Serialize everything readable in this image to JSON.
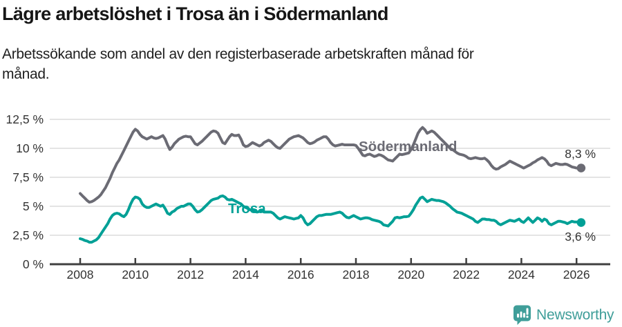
{
  "header": {
    "title": "Lägre arbetslöshet i Trosa än i Södermanland",
    "subtitle_line1": "Arbetssökande som andel av den registerbaserade arbetskraften månad för",
    "subtitle_line2": "månad."
  },
  "footer": {
    "brand": "Newsworthy"
  },
  "colors": {
    "sodermanland_line": "#6b6b74",
    "trosa_line": "#00a096",
    "brand_teal": "#3f9e99",
    "gridline": "#dcdcdc",
    "axis": "#3f3f3f",
    "tick_label": "#333333"
  },
  "chart_data": {
    "type": "line",
    "unit": "%",
    "frequency": "monthly",
    "x_start": "2008-01",
    "x_end": "2026-03",
    "xlim": [
      2008,
      2027.2
    ],
    "ylim": [
      0,
      12.5
    ],
    "grid": "horizontal-only",
    "y_ticks": [
      0,
      2.5,
      5,
      7.5,
      10,
      12.5
    ],
    "y_tick_labels": [
      "0 %",
      "2,5 %",
      "5 %",
      "7,5 %",
      "10 %",
      "12,5 %"
    ],
    "x_ticks": [
      2008,
      2010,
      2012,
      2014,
      2016,
      2018,
      2020,
      2022,
      2024,
      2026
    ],
    "x_tick_labels": [
      "2008",
      "2010",
      "2012",
      "2014",
      "2016",
      "2018",
      "2020",
      "2022",
      "2024",
      "2026"
    ],
    "legend_position": "inline-labels-on-lines",
    "series": [
      {
        "name": "Södermanland",
        "color": "#6b6b74",
        "end_label": "8,3 %",
        "last_value": 8.3,
        "values": [
          6.1,
          5.9,
          5.7,
          5.5,
          5.35,
          5.4,
          5.5,
          5.65,
          5.8,
          6.0,
          6.3,
          6.6,
          7.0,
          7.4,
          7.9,
          8.3,
          8.7,
          9.0,
          9.4,
          9.8,
          10.2,
          10.6,
          11.0,
          11.4,
          11.65,
          11.5,
          11.2,
          11.0,
          10.9,
          10.8,
          10.9,
          11.0,
          10.9,
          10.85,
          10.9,
          11.0,
          11.1,
          10.8,
          10.3,
          9.9,
          10.1,
          10.4,
          10.6,
          10.8,
          10.9,
          11.0,
          11.05,
          11.0,
          11.0,
          10.7,
          10.4,
          10.3,
          10.45,
          10.6,
          10.8,
          11.0,
          11.2,
          11.4,
          11.5,
          11.45,
          11.3,
          10.9,
          10.5,
          10.4,
          10.7,
          11.0,
          11.2,
          11.1,
          11.1,
          11.15,
          10.8,
          10.3,
          10.15,
          10.2,
          10.35,
          10.5,
          10.4,
          10.3,
          10.2,
          10.3,
          10.5,
          10.6,
          10.7,
          10.6,
          10.4,
          10.2,
          10.05,
          10.0,
          10.2,
          10.4,
          10.6,
          10.8,
          10.9,
          11.0,
          11.05,
          11.1,
          11.0,
          10.9,
          10.7,
          10.5,
          10.4,
          10.45,
          10.55,
          10.7,
          10.8,
          10.9,
          11.0,
          11.0,
          10.8,
          10.5,
          10.3,
          10.2,
          10.25,
          10.3,
          10.35,
          10.3,
          10.3,
          10.3,
          10.3,
          10.3,
          10.25,
          10.0,
          9.7,
          9.4,
          9.35,
          9.45,
          9.5,
          9.4,
          9.3,
          9.35,
          9.45,
          9.4,
          9.3,
          9.15,
          9.0,
          8.95,
          8.9,
          9.1,
          9.3,
          9.5,
          9.45,
          9.5,
          9.55,
          9.6,
          9.9,
          10.3,
          10.8,
          11.3,
          11.6,
          11.8,
          11.6,
          11.3,
          11.4,
          11.5,
          11.4,
          11.2,
          11.0,
          10.8,
          10.6,
          10.4,
          10.2,
          10.0,
          9.9,
          9.75,
          9.6,
          9.5,
          9.45,
          9.4,
          9.3,
          9.15,
          9.1,
          9.15,
          9.2,
          9.15,
          9.1,
          9.1,
          9.15,
          9.0,
          8.8,
          8.5,
          8.3,
          8.2,
          8.25,
          8.4,
          8.5,
          8.6,
          8.75,
          8.9,
          8.8,
          8.7,
          8.6,
          8.5,
          8.4,
          8.3,
          8.4,
          8.5,
          8.6,
          8.75,
          8.85,
          9.0,
          9.1,
          9.2,
          9.1,
          8.9,
          8.6,
          8.5,
          8.6,
          8.7,
          8.65,
          8.6,
          8.6,
          8.65,
          8.6,
          8.5,
          8.4,
          8.35,
          8.3,
          8.3,
          8.3
        ]
      },
      {
        "name": "Trosa",
        "color": "#00a096",
        "end_label": "3,6 %",
        "last_value": 3.6,
        "values": [
          2.2,
          2.15,
          2.05,
          2.0,
          1.9,
          1.9,
          2.0,
          2.1,
          2.3,
          2.6,
          2.9,
          3.2,
          3.5,
          3.9,
          4.2,
          4.35,
          4.4,
          4.35,
          4.2,
          4.1,
          4.3,
          4.7,
          5.2,
          5.6,
          5.8,
          5.75,
          5.6,
          5.2,
          5.0,
          4.9,
          4.9,
          5.0,
          5.1,
          5.2,
          5.1,
          5.0,
          5.1,
          4.8,
          4.4,
          4.3,
          4.5,
          4.6,
          4.8,
          4.9,
          5.0,
          5.0,
          5.1,
          5.2,
          5.2,
          5.0,
          4.7,
          4.5,
          4.55,
          4.7,
          4.9,
          5.1,
          5.3,
          5.5,
          5.6,
          5.65,
          5.7,
          5.85,
          5.9,
          5.8,
          5.6,
          5.55,
          5.6,
          5.5,
          5.4,
          5.3,
          5.2,
          5.0,
          4.9,
          4.8,
          4.7,
          4.6,
          4.55,
          4.5,
          4.55,
          4.6,
          4.5,
          4.5,
          4.5,
          4.5,
          4.4,
          4.2,
          4.0,
          3.9,
          4.0,
          4.1,
          4.05,
          4.0,
          3.95,
          3.9,
          3.95,
          4.0,
          4.2,
          4.0,
          3.6,
          3.4,
          3.5,
          3.7,
          3.9,
          4.1,
          4.2,
          4.2,
          4.25,
          4.3,
          4.3,
          4.3,
          4.35,
          4.4,
          4.45,
          4.5,
          4.4,
          4.2,
          4.05,
          4.0,
          4.1,
          4.2,
          4.1,
          4.0,
          3.9,
          3.95,
          4.0,
          4.0,
          3.95,
          3.85,
          3.8,
          3.75,
          3.7,
          3.6,
          3.4,
          3.35,
          3.3,
          3.5,
          3.7,
          4.0,
          4.05,
          4.0,
          4.05,
          4.1,
          4.1,
          4.15,
          4.4,
          4.7,
          5.1,
          5.4,
          5.7,
          5.8,
          5.6,
          5.4,
          5.5,
          5.6,
          5.55,
          5.5,
          5.5,
          5.45,
          5.4,
          5.3,
          5.15,
          5.0,
          4.8,
          4.65,
          4.5,
          4.45,
          4.4,
          4.3,
          4.2,
          4.1,
          4.0,
          3.9,
          3.7,
          3.6,
          3.75,
          3.9,
          3.9,
          3.85,
          3.85,
          3.8,
          3.8,
          3.7,
          3.5,
          3.4,
          3.5,
          3.6,
          3.7,
          3.8,
          3.75,
          3.7,
          3.8,
          3.9,
          3.7,
          3.6,
          3.8,
          4.0,
          3.8,
          3.6,
          3.8,
          4.0,
          3.9,
          3.7,
          3.9,
          3.8,
          3.5,
          3.4,
          3.5,
          3.6,
          3.7,
          3.7,
          3.65,
          3.6,
          3.5,
          3.6,
          3.7,
          3.65,
          3.65,
          3.6,
          3.6
        ]
      }
    ]
  }
}
